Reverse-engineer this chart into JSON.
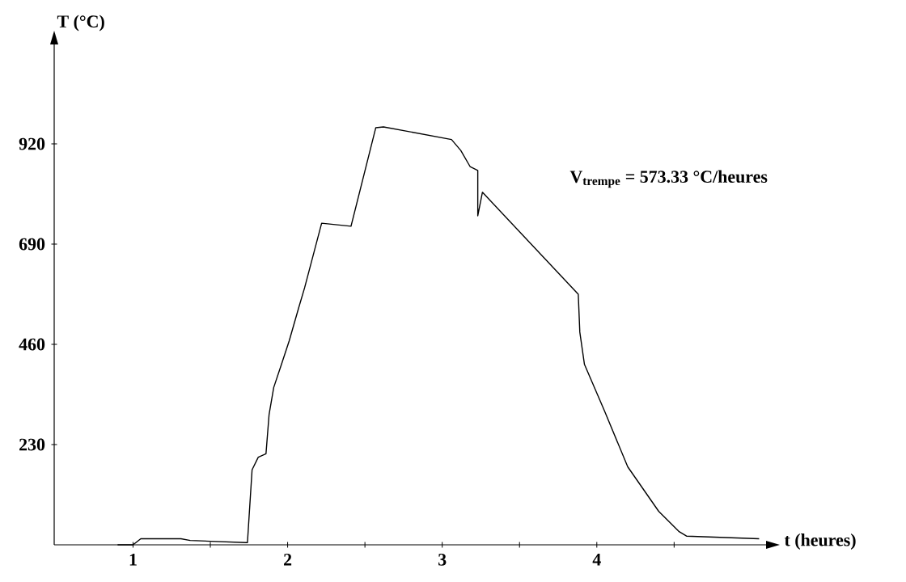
{
  "chart_data": {
    "type": "line",
    "xlabel": "t (heures)",
    "ylabel": "T (°C)",
    "annotations": [
      "V$_{trempe}$ = 573.33 °C/heures"
    ],
    "xlim": [
      0.49,
      5.1
    ],
    "ylim": [
      0,
      1150
    ],
    "xticks": [
      1,
      {
        "value": 1.5,
        "label": null
      },
      2,
      {
        "value": 2.5,
        "label": null
      },
      3,
      {
        "value": 3.5,
        "label": null
      },
      4,
      {
        "value": 4.5,
        "label": null
      }
    ],
    "yticks": [
      230,
      460,
      690,
      920
    ],
    "series": [
      {
        "color": "#000000",
        "x": [
          0.9,
          1.0,
          1.05,
          1.31,
          1.37,
          1.73,
          1.74,
          1.77,
          1.81,
          1.86,
          1.88,
          1.91,
          1.96,
          2.01,
          2.07,
          2.11,
          2.22,
          2.41,
          2.57,
          2.62,
          3.06,
          3.12,
          3.18,
          3.23,
          3.23,
          3.26,
          3.88,
          3.89,
          3.92,
          4.05,
          4.2,
          4.4,
          4.53,
          4.58,
          5.05
        ],
        "values": [
          0,
          0,
          14,
          14,
          10,
          5,
          5,
          172,
          201,
          209,
          299,
          361,
          414,
          468,
          542,
          590,
          738,
          731,
          957,
          959,
          930,
          905,
          868,
          859,
          755,
          809,
          575,
          488,
          414,
          307,
          179,
          77,
          31,
          20,
          14
        ]
      }
    ]
  }
}
